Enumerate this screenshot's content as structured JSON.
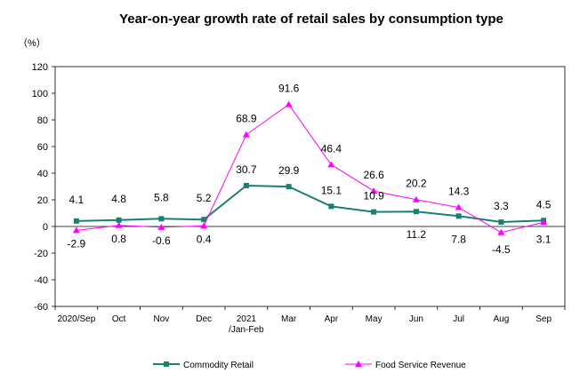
{
  "chart_data": {
    "type": "line",
    "title": "Year-on-year growth rate of retail sales by consumption type",
    "ylabel": "（%）",
    "xlabel": "",
    "ylim": [
      -60,
      120
    ],
    "yticks": [
      120,
      100,
      80,
      60,
      40,
      20,
      0,
      -20,
      -40,
      -60
    ],
    "grid": false,
    "legend_position": "bottom",
    "categories": [
      [
        "2020/Sep"
      ],
      [
        "Oct"
      ],
      [
        "Nov"
      ],
      [
        "Dec"
      ],
      [
        "2021",
        "/Jan-Feb"
      ],
      [
        "Mar"
      ],
      [
        "Apr"
      ],
      [
        "May"
      ],
      [
        "Jun"
      ],
      [
        "Jul"
      ],
      [
        "Aug"
      ],
      [
        "Sep"
      ]
    ],
    "series": [
      {
        "name": "Commodity Retail",
        "color": "#1a7f73",
        "marker": "square",
        "values": [
          4.1,
          4.8,
          5.8,
          5.2,
          30.7,
          29.9,
          15.1,
          10.9,
          11.2,
          7.8,
          3.3,
          4.5
        ],
        "labels": [
          "4.1",
          "4.8",
          "5.8",
          "5.2",
          "30.7",
          "29.9",
          "15.1",
          "10.9",
          "11.2",
          "7.8",
          "3.3",
          "4.5"
        ]
      },
      {
        "name": "Food Service Revenue",
        "color": "#ff00ff",
        "marker": "triangle",
        "values": [
          -2.9,
          0.8,
          -0.6,
          0.4,
          68.9,
          91.6,
          46.4,
          26.6,
          20.2,
          14.3,
          -4.5,
          3.1
        ],
        "labels": [
          "-2.9",
          "0.8",
          "-0.6",
          "0.4",
          "68.9",
          "91.6",
          "46.4",
          "26.6",
          "20.2",
          "14.3",
          "-4.5",
          "3.1"
        ]
      }
    ]
  }
}
